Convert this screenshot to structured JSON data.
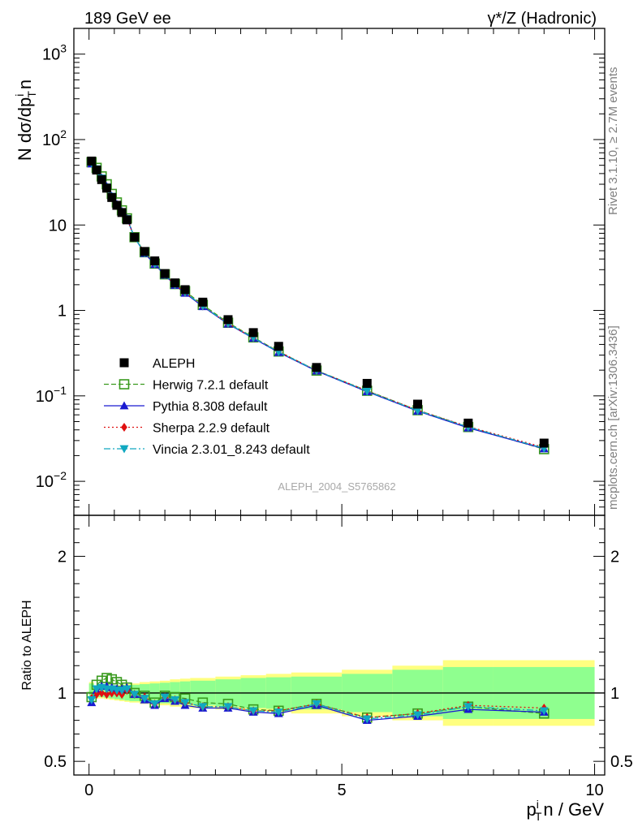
{
  "header": {
    "left": "189 GeV ee",
    "right": "γ*/Z (Hadronic)"
  },
  "side_notes": {
    "rivet": "Rivet 3.1.10, ≥ 2.7M events",
    "mcplots": "mcplots.cern.ch [arXiv:1306.3436]"
  },
  "analysis_id": "ALEPH_2004_S5765862",
  "colors": {
    "data": "#000000",
    "herwig": "#3a9a1f",
    "pythia": "#1a1ad0",
    "sherpa": "#e01010",
    "vincia": "#10a8c0",
    "band_inner": "#8fff8f",
    "band_outer": "#ffff80"
  },
  "chart_data": {
    "type": "scatter",
    "main": {
      "ylabel": "N dσ/dp",
      "ylabel_sub": "T",
      "ylabel_sup": "i",
      "ylabel_suffix": "n",
      "yscale": "log",
      "ylim": [
        0.004,
        2000
      ],
      "yticks": [
        {
          "v": 0.01,
          "base": "10",
          "exp": "−2"
        },
        {
          "v": 0.1,
          "base": "10",
          "exp": "−1"
        },
        {
          "v": 1,
          "label": "1"
        },
        {
          "v": 10,
          "label": "10"
        },
        {
          "v": 100,
          "base": "10",
          "exp": "2"
        },
        {
          "v": 1000,
          "base": "10",
          "exp": "3"
        }
      ]
    },
    "ratio": {
      "ylabel": "Ratio to ALEPH",
      "ylim": [
        0.4,
        2.3
      ],
      "yticks": [
        {
          "v": 0.5,
          "label": "0.5"
        },
        {
          "v": 1,
          "label": "1"
        },
        {
          "v": 2,
          "label": "2"
        }
      ]
    },
    "xlim": [
      -0.3,
      10.2
    ],
    "xticks": [
      {
        "v": 0,
        "label": "0"
      },
      {
        "v": 5,
        "label": "5"
      },
      {
        "v": 10,
        "label": "10"
      }
    ],
    "xlabel": "p",
    "xlabel_sub": "T",
    "xlabel_sup": "i",
    "xlabel_suffix": "n / GeV",
    "x": [
      0.05,
      0.15,
      0.25,
      0.35,
      0.45,
      0.55,
      0.65,
      0.75,
      0.9,
      1.1,
      1.3,
      1.5,
      1.7,
      1.9,
      2.25,
      2.75,
      3.25,
      3.75,
      4.5,
      5.5,
      6.5,
      7.5,
      9.0
    ],
    "bins": [
      0.0,
      0.1,
      0.2,
      0.3,
      0.4,
      0.5,
      0.6,
      0.7,
      0.8,
      1.0,
      1.2,
      1.4,
      1.6,
      1.8,
      2.0,
      2.5,
      3.0,
      3.5,
      4.0,
      5.0,
      6.0,
      7.0,
      8.0,
      10.0
    ],
    "data": {
      "name": "ALEPH",
      "values": [
        56,
        44,
        34,
        27,
        21,
        17,
        14,
        11.5,
        7.2,
        4.9,
        3.8,
        2.7,
        2.1,
        1.75,
        1.25,
        0.78,
        0.55,
        0.38,
        0.215,
        0.14,
        0.08,
        0.048,
        0.028
      ],
      "band_inner": [
        0.07,
        0.03,
        0.03,
        0.035,
        0.04,
        0.045,
        0.05,
        0.055,
        0.06,
        0.065,
        0.07,
        0.075,
        0.08,
        0.085,
        0.09,
        0.1,
        0.11,
        0.115,
        0.12,
        0.14,
        0.17,
        0.19,
        0.19
      ],
      "band_outer": [
        0.08,
        0.04,
        0.04,
        0.045,
        0.05,
        0.055,
        0.06,
        0.065,
        0.07,
        0.08,
        0.085,
        0.09,
        0.1,
        0.105,
        0.11,
        0.12,
        0.13,
        0.14,
        0.15,
        0.17,
        0.2,
        0.24,
        0.24
      ]
    },
    "series": [
      {
        "name": "Herwig 7.2.1 default",
        "key": "herwig",
        "marker": "open-square",
        "dash": "6,3",
        "ratio": [
          0.97,
          1.06,
          1.09,
          1.11,
          1.1,
          1.08,
          1.06,
          1.04,
          1.0,
          0.98,
          0.93,
          0.98,
          0.97,
          0.96,
          0.93,
          0.92,
          0.88,
          0.87,
          0.92,
          0.82,
          0.85,
          0.9,
          0.85
        ]
      },
      {
        "name": "Pythia 8.308 default",
        "key": "pythia",
        "marker": "triangle-up",
        "dash": "",
        "ratio": [
          0.93,
          1.02,
          1.05,
          1.05,
          1.04,
          1.03,
          1.03,
          1.04,
          0.99,
          0.95,
          0.91,
          0.96,
          0.94,
          0.91,
          0.89,
          0.89,
          0.86,
          0.85,
          0.91,
          0.8,
          0.83,
          0.88,
          0.86
        ]
      },
      {
        "name": "Sherpa 2.2.9 default",
        "key": "sherpa",
        "marker": "diamond",
        "dash": "2,3",
        "ratio": [
          0.96,
          0.99,
          1.0,
          0.99,
          1.0,
          1.0,
          0.99,
          1.02,
          0.99,
          0.97,
          0.92,
          0.97,
          0.95,
          0.93,
          0.9,
          0.9,
          0.87,
          0.87,
          0.92,
          0.82,
          0.85,
          0.91,
          0.89
        ]
      },
      {
        "name": "Vincia 2.3.01_8.243 default",
        "key": "vincia",
        "marker": "triangle-down",
        "dash": "8,3,2,3",
        "ratio": [
          0.95,
          1.03,
          1.04,
          1.03,
          1.03,
          1.02,
          1.02,
          1.03,
          0.99,
          0.96,
          0.92,
          0.97,
          0.95,
          0.93,
          0.9,
          0.9,
          0.87,
          0.86,
          0.92,
          0.81,
          0.84,
          0.9,
          0.87
        ]
      }
    ]
  }
}
